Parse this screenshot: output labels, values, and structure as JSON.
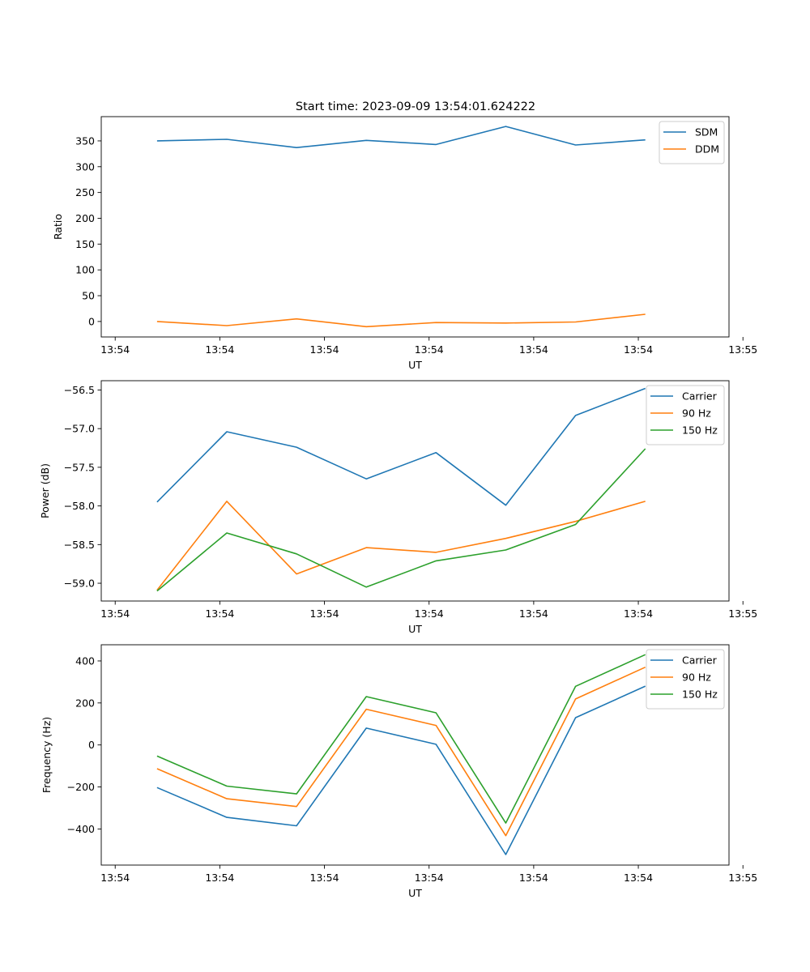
{
  "figure": {
    "title": "Start time: 2023-09-09 13:54:01.624222"
  },
  "colors": {
    "blue": "#1f77b4",
    "orange": "#ff7f0e",
    "green": "#2ca02c"
  },
  "chart_data": [
    {
      "type": "line",
      "title": "Start time: 2023-09-09 13:54:01.624222",
      "xlabel": "UT",
      "ylabel": "Ratio",
      "x": [
        1,
        2,
        3,
        4,
        5,
        6,
        7,
        8
      ],
      "xlim": [
        0.2,
        9.2
      ],
      "x_ticks": [
        0.4,
        1.9,
        3.4,
        4.9,
        6.4,
        7.9,
        9.4
      ],
      "x_ticklabels": [
        "13:54",
        "13:54",
        "13:54",
        "13:54",
        "13:54",
        "13:54",
        "13:55"
      ],
      "ylim": [
        -30,
        397
      ],
      "y_ticks": [
        0,
        50,
        100,
        150,
        200,
        250,
        300,
        350
      ],
      "y_ticklabels": [
        "0",
        "50",
        "100",
        "150",
        "200",
        "250",
        "300",
        "350"
      ],
      "legend_position": "top-right",
      "series": [
        {
          "name": "SDM",
          "color": "#1f77b4",
          "values": [
            350,
            353,
            337,
            351,
            343,
            378,
            342,
            352
          ]
        },
        {
          "name": "DDM",
          "color": "#ff7f0e",
          "values": [
            0,
            -8,
            5,
            -10,
            -2,
            -3,
            -1,
            14
          ]
        }
      ]
    },
    {
      "type": "line",
      "title": "",
      "xlabel": "UT",
      "ylabel": "Power (dB)",
      "x": [
        1,
        2,
        3,
        4,
        5,
        6,
        7,
        8
      ],
      "xlim": [
        0.2,
        9.2
      ],
      "x_ticks": [
        0.4,
        1.9,
        3.4,
        4.9,
        6.4,
        7.9,
        9.4
      ],
      "x_ticklabels": [
        "13:54",
        "13:54",
        "13:54",
        "13:54",
        "13:54",
        "13:54",
        "13:55"
      ],
      "ylim": [
        -59.23,
        -56.38
      ],
      "y_ticks": [
        -59.0,
        -58.5,
        -58.0,
        -57.5,
        -57.0,
        -56.5
      ],
      "y_ticklabels": [
        "−59.0",
        "−58.5",
        "−58.0",
        "−57.5",
        "−57.0",
        "−56.5"
      ],
      "legend_position": "top-right",
      "series": [
        {
          "name": "Carrier",
          "color": "#1f77b4",
          "values": [
            -57.95,
            -57.04,
            -57.24,
            -57.65,
            -57.31,
            -57.99,
            -56.83,
            -56.48
          ]
        },
        {
          "name": "90 Hz",
          "color": "#ff7f0e",
          "values": [
            -59.09,
            -57.94,
            -58.88,
            -58.54,
            -58.6,
            -58.42,
            -58.2,
            -57.94
          ]
        },
        {
          "name": "150 Hz",
          "color": "#2ca02c",
          "values": [
            -59.1,
            -58.35,
            -58.62,
            -59.05,
            -58.71,
            -58.57,
            -58.24,
            -57.26
          ]
        }
      ]
    },
    {
      "type": "line",
      "title": "",
      "xlabel": "UT",
      "ylabel": "Frequency (Hz)",
      "x": [
        1,
        2,
        3,
        4,
        5,
        6,
        7,
        8
      ],
      "xlim": [
        0.2,
        9.2
      ],
      "x_ticks": [
        0.4,
        1.9,
        3.4,
        4.9,
        6.4,
        7.9,
        9.4
      ],
      "x_ticklabels": [
        "13:54",
        "13:54",
        "13:54",
        "13:54",
        "13:54",
        "13:54",
        "13:55"
      ],
      "ylim": [
        -572,
        477
      ],
      "y_ticks": [
        -400,
        -200,
        0,
        200,
        400
      ],
      "y_ticklabels": [
        "−400",
        "−200",
        "0",
        "200",
        "400"
      ],
      "legend_position": "top-right",
      "series": [
        {
          "name": "Carrier",
          "color": "#1f77b4",
          "values": [
            -203,
            -345,
            -385,
            80,
            3,
            -522,
            130,
            280
          ]
        },
        {
          "name": "90 Hz",
          "color": "#ff7f0e",
          "values": [
            -113,
            -256,
            -293,
            170,
            93,
            -432,
            219,
            370
          ]
        },
        {
          "name": "150 Hz",
          "color": "#2ca02c",
          "values": [
            -53,
            -196,
            -233,
            230,
            153,
            -372,
            279,
            430
          ]
        }
      ]
    }
  ]
}
